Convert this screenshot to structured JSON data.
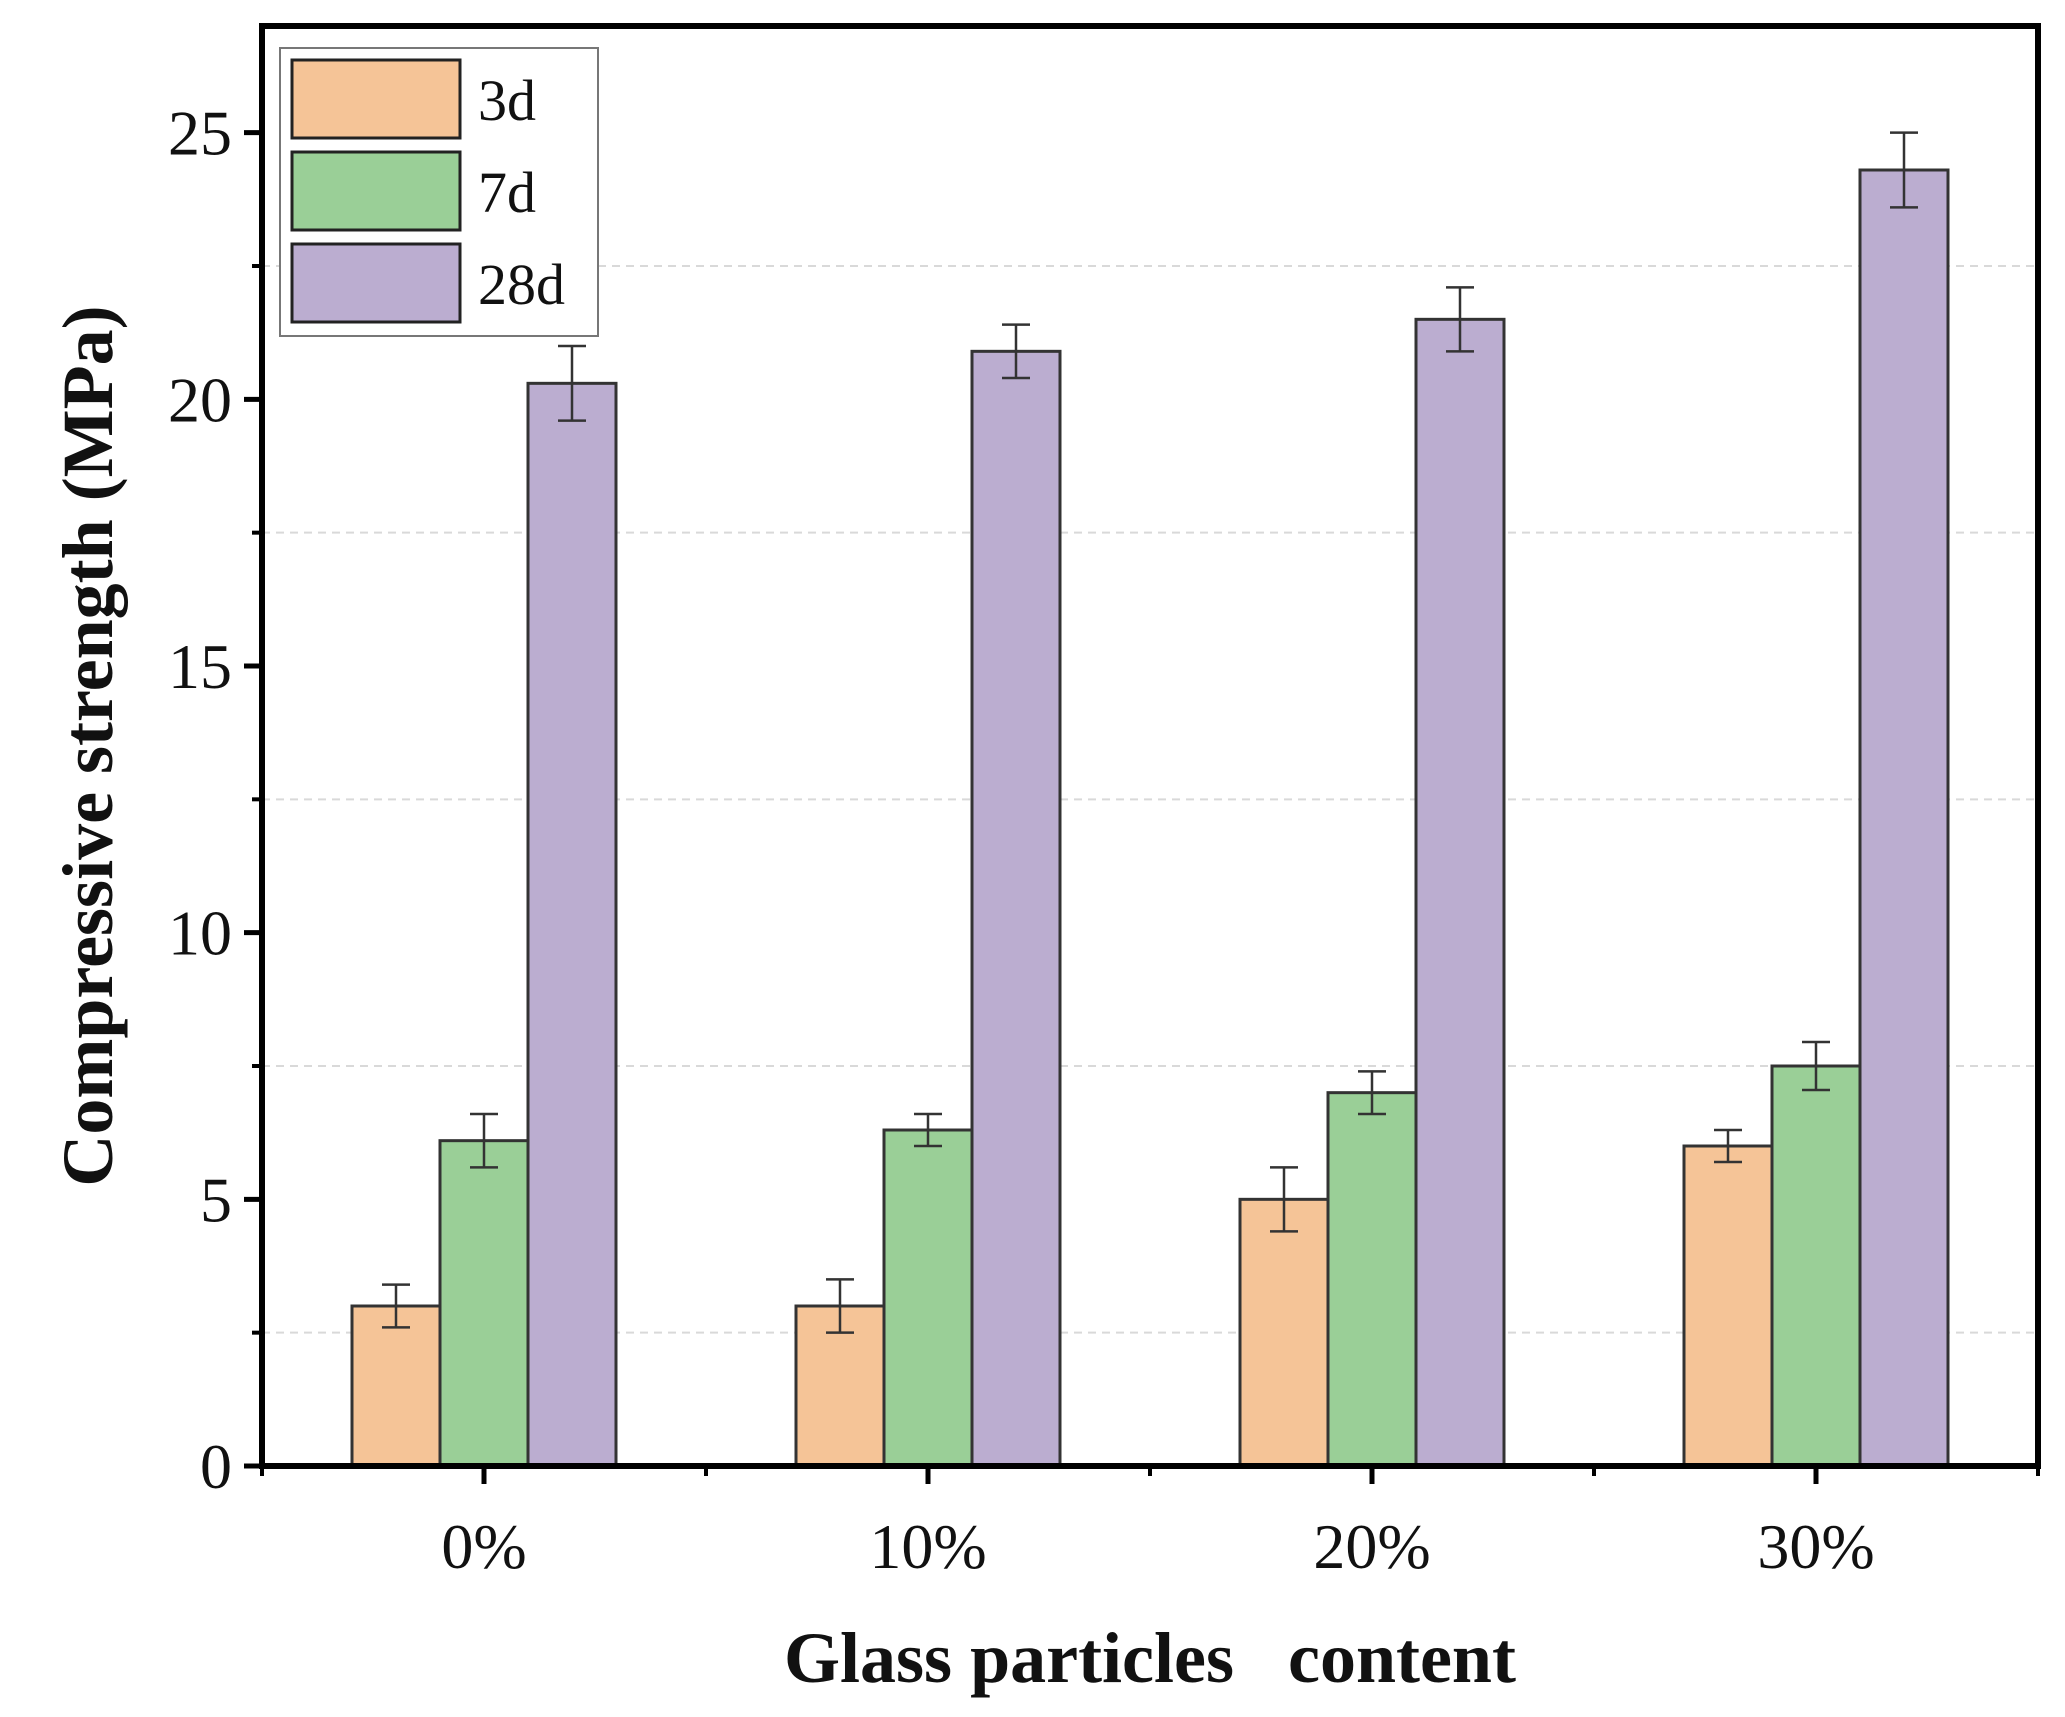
{
  "chart_data": {
    "type": "bar",
    "title": "",
    "xlabel": "Glass particles   content",
    "ylabel": "Compressive strength (MPa)",
    "categories": [
      "0%",
      "10%",
      "20%",
      "30%"
    ],
    "ylim": [
      0,
      27
    ],
    "yticks": [
      0,
      5,
      10,
      15,
      20,
      25
    ],
    "grid": "horizontal dashed",
    "legend_position": "top-left",
    "series": [
      {
        "name": "3d",
        "color": "#F5C497",
        "values": [
          3.0,
          3.0,
          5.0,
          6.0
        ],
        "errors": [
          0.4,
          0.5,
          0.6,
          0.3
        ]
      },
      {
        "name": "7d",
        "color": "#9ACF97",
        "values": [
          6.1,
          6.3,
          7.0,
          7.5
        ],
        "errors": [
          0.5,
          0.3,
          0.4,
          0.45
        ]
      },
      {
        "name": "28d",
        "color": "#BBADD0",
        "values": [
          20.3,
          20.9,
          21.5,
          24.3
        ],
        "errors": [
          0.7,
          0.5,
          0.6,
          0.7
        ]
      }
    ]
  }
}
